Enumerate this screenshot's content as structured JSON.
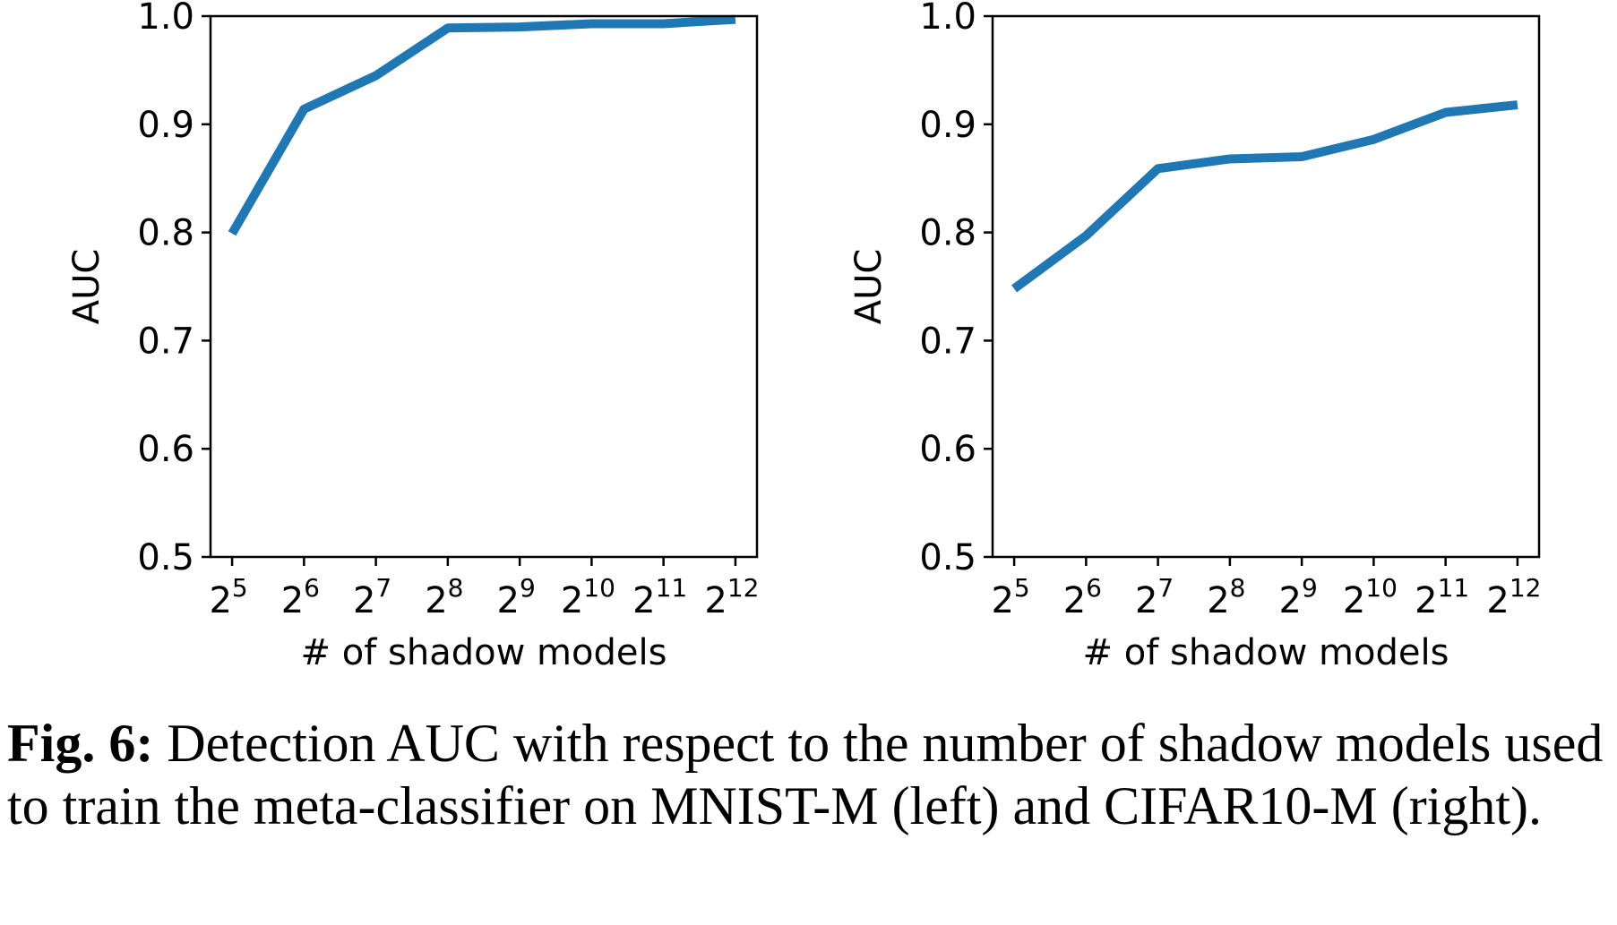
{
  "chart_data": [
    {
      "type": "line",
      "x": [
        5,
        6,
        7,
        8,
        9,
        10,
        11,
        12
      ],
      "x_tick_base": "2",
      "x_tick_exponents": [
        "5",
        "6",
        "7",
        "8",
        "9",
        "10",
        "11",
        "12"
      ],
      "xlabel": "# of shadow models",
      "ylabel": "AUC",
      "ylim": [
        0.5,
        1.0
      ],
      "y_ticks": [
        "0.5",
        "0.6",
        "0.7",
        "0.8",
        "0.9",
        "1.0"
      ],
      "series": [
        {
          "values": [
            0.799,
            0.914,
            0.945,
            0.989,
            0.99,
            0.993,
            0.993,
            0.997
          ],
          "color": "#1f77b4"
        }
      ],
      "grid": false
    },
    {
      "type": "line",
      "x": [
        5,
        6,
        7,
        8,
        9,
        10,
        11,
        12
      ],
      "x_tick_base": "2",
      "x_tick_exponents": [
        "5",
        "6",
        "7",
        "8",
        "9",
        "10",
        "11",
        "12"
      ],
      "xlabel": "# of shadow models",
      "ylabel": "AUC",
      "ylim": [
        0.5,
        1.0
      ],
      "y_ticks": [
        "0.5",
        "0.6",
        "0.7",
        "0.8",
        "0.9",
        "1.0"
      ],
      "series": [
        {
          "values": [
            0.748,
            0.797,
            0.859,
            0.868,
            0.87,
            0.886,
            0.911,
            0.918
          ],
          "color": "#1f77b4"
        }
      ],
      "grid": false
    }
  ],
  "caption": {
    "label": "Fig. 6:",
    "text": " Detection AUC with respect to the number of shadow models used to train the meta-classifier on MNIST-M (left) and CIFAR10-M (right)."
  }
}
